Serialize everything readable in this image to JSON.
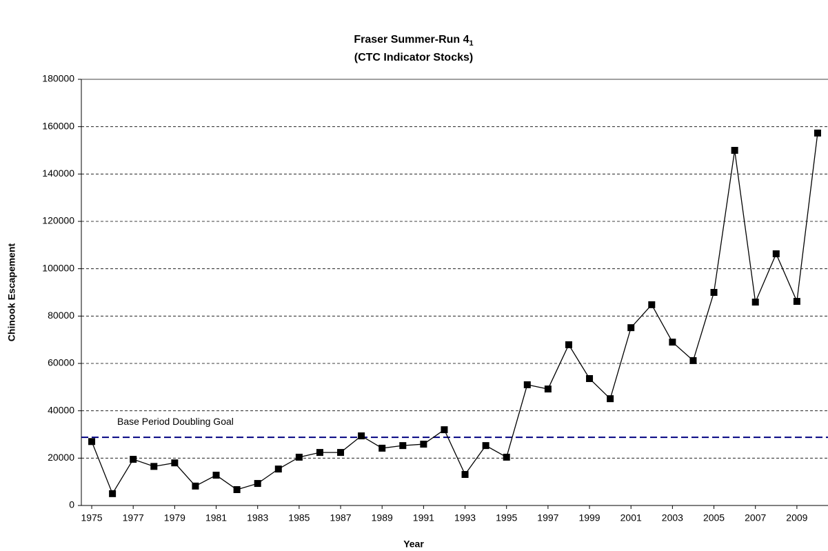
{
  "chart_data": {
    "type": "line",
    "title": "Fraser Summer-Run 4",
    "title_subscript": "1",
    "subtitle": "(CTC Indicator Stocks)",
    "x_label": "Year",
    "y_label": "Chinook Escapement",
    "x": [
      1975,
      1976,
      1977,
      1978,
      1979,
      1980,
      1981,
      1982,
      1983,
      1984,
      1985,
      1986,
      1987,
      1988,
      1989,
      1990,
      1991,
      1992,
      1993,
      1994,
      1995,
      1996,
      1997,
      1998,
      1999,
      2000,
      2001,
      2002,
      2003,
      2004,
      2005,
      2006,
      2007,
      2008,
      2009,
      2010
    ],
    "series": [
      {
        "name": "Escapement",
        "color": "#000000",
        "values": [
          27000,
          5000,
          19500,
          16500,
          18000,
          8200,
          12800,
          6700,
          9300,
          15400,
          20400,
          22400,
          22400,
          29400,
          24200,
          25300,
          25900,
          32000,
          13100,
          25300,
          20400,
          51000,
          49200,
          67900,
          53600,
          45100,
          75100,
          84800,
          69000,
          61200,
          90000,
          150000,
          85900,
          106300,
          86200,
          157300
        ]
      }
    ],
    "reference_line": {
      "value": 28800,
      "label": "Base Period Doubling Goal",
      "color": "#000080"
    },
    "xlim": [
      1974.5,
      2010.5
    ],
    "xticks": [
      1975,
      1977,
      1979,
      1981,
      1983,
      1985,
      1987,
      1989,
      1991,
      1993,
      1995,
      1997,
      1999,
      2001,
      2003,
      2005,
      2007,
      2009
    ],
    "ylim": [
      0,
      180000
    ],
    "yticks": [
      0,
      20000,
      40000,
      60000,
      80000,
      100000,
      120000,
      140000,
      160000,
      180000
    ],
    "grid": true
  }
}
